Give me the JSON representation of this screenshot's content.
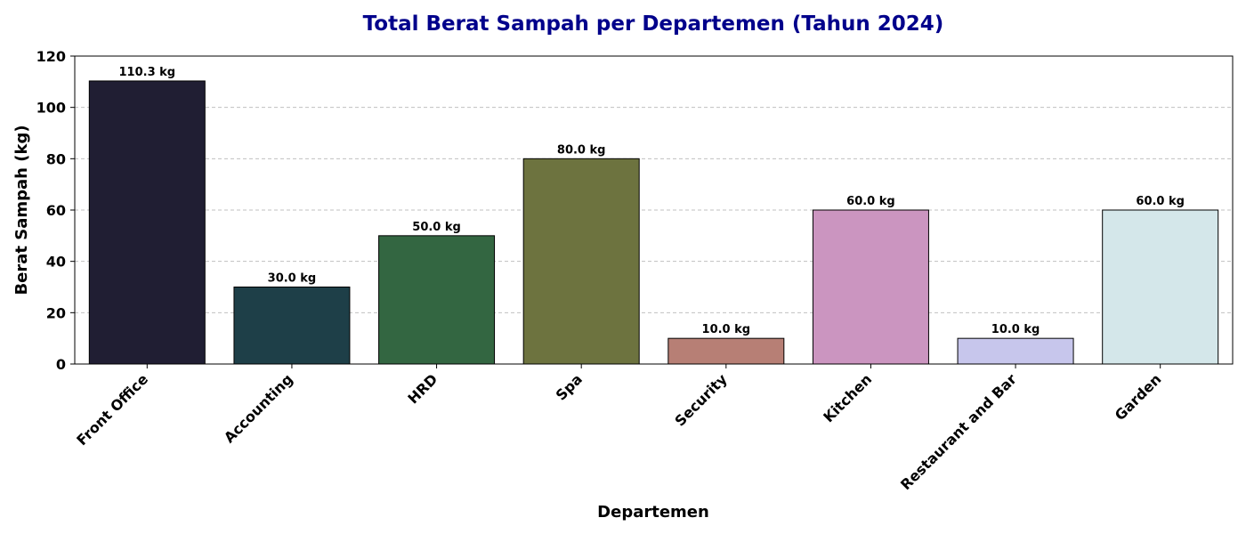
{
  "chart_data": {
    "type": "bar",
    "title": "Total Berat Sampah per Departemen (Tahun 2024)",
    "xlabel": "Departemen",
    "ylabel": "Berat Sampah (kg)",
    "categories": [
      "Front Office",
      "Accounting",
      "HRD",
      "Spa",
      "Security",
      "Kitchen",
      "Restaurant and Bar",
      "Garden"
    ],
    "values": [
      110.3,
      30.0,
      50.0,
      80.0,
      10.0,
      60.0,
      10.0,
      60.0
    ],
    "data_labels": [
      "110.3 kg",
      "30.0 kg",
      "50.0 kg",
      "80.0 kg",
      "10.0 kg",
      "60.0 kg",
      "10.0 kg",
      "60.0 kg"
    ],
    "bar_colors": [
      "#201e33",
      "#1e3f48",
      "#336641",
      "#6d733f",
      "#b77f75",
      "#cb95c0",
      "#c7c6ec",
      "#d4e7ea"
    ],
    "ylim": [
      0,
      120
    ],
    "yticks": [
      0,
      20,
      40,
      60,
      80,
      100,
      120
    ],
    "grid": "y-dashed",
    "colors": {
      "title": "#00008b",
      "grid": "#c0c0c0",
      "bar_edge": "#000000"
    }
  }
}
